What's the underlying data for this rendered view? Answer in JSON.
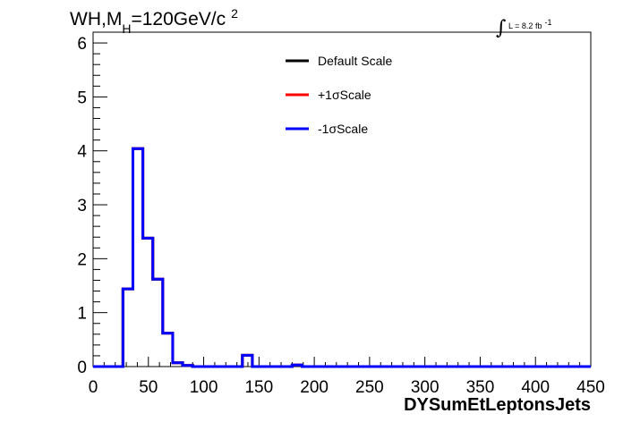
{
  "chart_data": {
    "type": "line",
    "step": true,
    "title": {
      "main": "WH,M",
      "sub": "H",
      "value": "=120GeV/c",
      "sup": "2"
    },
    "luminosity": {
      "text": "L = 8.2 fb",
      "sup": "-1"
    },
    "xlabel": "DYSumEtLeptonsJets",
    "ylabel": "",
    "xlim": [
      0,
      450
    ],
    "ylim": [
      0,
      6.2
    ],
    "xticks": [
      0,
      50,
      100,
      150,
      200,
      250,
      300,
      350,
      400,
      450
    ],
    "yticks": [
      0,
      1,
      2,
      3,
      4,
      5,
      6
    ],
    "grid": false,
    "legend_position": "top-center",
    "bin_edges": [
      0,
      9,
      18,
      27,
      36,
      45,
      54,
      63,
      72,
      81,
      90,
      99,
      108,
      117,
      126,
      135,
      144,
      153,
      162,
      171,
      180,
      189,
      198,
      450
    ],
    "series": [
      {
        "name": "Default Scale",
        "color": "#000000",
        "values": [
          0,
          0,
          0,
          1.44,
          4.04,
          2.38,
          1.62,
          0.62,
          0.07,
          0.02,
          0,
          0,
          0,
          0,
          0,
          0.21,
          0,
          0,
          0,
          0,
          0.03,
          0,
          0
        ]
      },
      {
        "name": "+1σScale",
        "color": "#ff0000",
        "values": [
          0,
          0,
          0,
          1.44,
          4.04,
          2.38,
          1.62,
          0.62,
          0.07,
          0.02,
          0,
          0,
          0,
          0,
          0,
          0.21,
          0,
          0,
          0,
          0,
          0.03,
          0,
          0
        ]
      },
      {
        "name": "-1σScale",
        "color": "#0000ff",
        "values": [
          0,
          0,
          0,
          1.44,
          4.04,
          2.38,
          1.62,
          0.62,
          0.07,
          0.02,
          0,
          0,
          0,
          0,
          0,
          0.21,
          0,
          0,
          0,
          0,
          0.03,
          0,
          0
        ]
      }
    ]
  }
}
